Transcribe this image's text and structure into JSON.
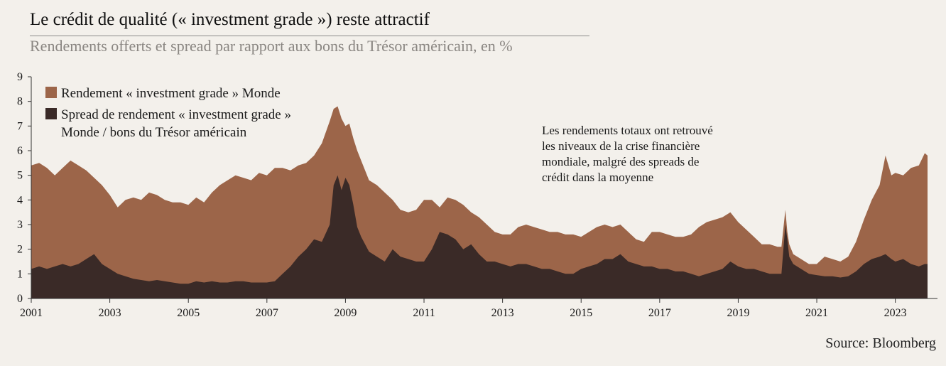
{
  "header": {
    "title": "Le crédit de qualité (« investment grade ») reste attractif",
    "subtitle": "Rendements offerts et spread par rapport aux bons du Trésor américain, en %"
  },
  "footer": {
    "source": "Source: Bloomberg"
  },
  "colors": {
    "yield": "#9c6549",
    "spread": "#3a2a27",
    "background": "#f3f0eb"
  },
  "chart_data": {
    "type": "area",
    "xlim": [
      2001.0,
      2023.82
    ],
    "ylim": [
      0,
      9
    ],
    "x_ticks": [
      2001,
      2003,
      2005,
      2007,
      2009,
      2011,
      2013,
      2015,
      2017,
      2019,
      2021,
      2023
    ],
    "x_tick_labels": [
      "2001",
      "2003",
      "2005",
      "2007",
      "2009",
      "2011",
      "2013",
      "2015",
      "2017",
      "2019",
      "2021",
      "2023"
    ],
    "y_ticks": [
      0,
      1,
      2,
      3,
      4,
      5,
      6,
      7,
      8,
      9
    ],
    "y_tick_labels": [
      "0",
      "1",
      "2",
      "3",
      "4",
      "5",
      "6",
      "7",
      "8",
      "9"
    ],
    "grid": false,
    "legend_position": "top-left",
    "series": [
      {
        "name": "Rendement « investment grade » Monde",
        "legend_lines": [
          "Rendement « investment grade » Monde"
        ],
        "x": [
          2001.0,
          2001.2,
          2001.4,
          2001.6,
          2001.8,
          2002.0,
          2002.2,
          2002.4,
          2002.6,
          2002.8,
          2003.0,
          2003.2,
          2003.4,
          2003.6,
          2003.8,
          2004.0,
          2004.2,
          2004.4,
          2004.6,
          2004.8,
          2005.0,
          2005.2,
          2005.4,
          2005.6,
          2005.8,
          2006.0,
          2006.2,
          2006.4,
          2006.6,
          2006.8,
          2007.0,
          2007.2,
          2007.4,
          2007.6,
          2007.8,
          2008.0,
          2008.2,
          2008.4,
          2008.6,
          2008.7,
          2008.8,
          2008.9,
          2009.0,
          2009.1,
          2009.2,
          2009.3,
          2009.4,
          2009.6,
          2009.8,
          2010.0,
          2010.2,
          2010.4,
          2010.6,
          2010.8,
          2011.0,
          2011.2,
          2011.4,
          2011.6,
          2011.8,
          2012.0,
          2012.2,
          2012.4,
          2012.6,
          2012.8,
          2013.0,
          2013.2,
          2013.4,
          2013.6,
          2013.8,
          2014.0,
          2014.2,
          2014.4,
          2014.6,
          2014.8,
          2015.0,
          2015.2,
          2015.4,
          2015.6,
          2015.8,
          2016.0,
          2016.2,
          2016.4,
          2016.6,
          2016.8,
          2017.0,
          2017.2,
          2017.4,
          2017.6,
          2017.8,
          2018.0,
          2018.2,
          2018.4,
          2018.6,
          2018.8,
          2019.0,
          2019.2,
          2019.4,
          2019.6,
          2019.8,
          2020.0,
          2020.1,
          2020.2,
          2020.25,
          2020.3,
          2020.4,
          2020.6,
          2020.8,
          2021.0,
          2021.2,
          2021.4,
          2021.6,
          2021.8,
          2022.0,
          2022.2,
          2022.4,
          2022.6,
          2022.75,
          2022.9,
          2023.0,
          2023.2,
          2023.4,
          2023.6,
          2023.75,
          2023.82
        ],
        "values": [
          5.4,
          5.5,
          5.3,
          5.0,
          5.3,
          5.6,
          5.4,
          5.2,
          4.9,
          4.6,
          4.2,
          3.7,
          4.0,
          4.1,
          4.0,
          4.3,
          4.2,
          4.0,
          3.9,
          3.9,
          3.8,
          4.1,
          3.9,
          4.3,
          4.6,
          4.8,
          5.0,
          4.9,
          4.8,
          5.1,
          5.0,
          5.3,
          5.3,
          5.2,
          5.4,
          5.5,
          5.8,
          6.3,
          7.2,
          7.7,
          7.8,
          7.3,
          7.0,
          7.1,
          6.5,
          6.0,
          5.6,
          4.8,
          4.6,
          4.3,
          4.0,
          3.6,
          3.5,
          3.6,
          4.0,
          4.0,
          3.7,
          4.1,
          4.0,
          3.8,
          3.5,
          3.3,
          3.0,
          2.7,
          2.6,
          2.6,
          2.9,
          3.0,
          2.9,
          2.8,
          2.7,
          2.7,
          2.6,
          2.6,
          2.5,
          2.7,
          2.9,
          3.0,
          2.9,
          3.0,
          2.7,
          2.4,
          2.3,
          2.7,
          2.7,
          2.6,
          2.5,
          2.5,
          2.6,
          2.9,
          3.1,
          3.2,
          3.3,
          3.5,
          3.1,
          2.8,
          2.5,
          2.2,
          2.2,
          2.1,
          2.1,
          3.6,
          2.7,
          2.2,
          1.8,
          1.6,
          1.4,
          1.4,
          1.7,
          1.6,
          1.5,
          1.7,
          2.3,
          3.2,
          4.0,
          4.6,
          5.8,
          5.0,
          5.1,
          5.0,
          5.3,
          5.4,
          5.9,
          5.8
        ]
      },
      {
        "name": "Spread de rendement « investment grade » Monde / bons du Trésor américain",
        "legend_lines": [
          "Spread de rendement « investment grade »",
          "Monde / bons du Trésor américain"
        ],
        "x": [
          2001.0,
          2001.2,
          2001.4,
          2001.6,
          2001.8,
          2002.0,
          2002.2,
          2002.4,
          2002.6,
          2002.8,
          2003.0,
          2003.2,
          2003.4,
          2003.6,
          2003.8,
          2004.0,
          2004.2,
          2004.4,
          2004.6,
          2004.8,
          2005.0,
          2005.2,
          2005.4,
          2005.6,
          2005.8,
          2006.0,
          2006.2,
          2006.4,
          2006.6,
          2006.8,
          2007.0,
          2007.2,
          2007.4,
          2007.6,
          2007.8,
          2008.0,
          2008.2,
          2008.4,
          2008.6,
          2008.7,
          2008.8,
          2008.9,
          2009.0,
          2009.1,
          2009.2,
          2009.3,
          2009.4,
          2009.6,
          2009.8,
          2010.0,
          2010.2,
          2010.4,
          2010.6,
          2010.8,
          2011.0,
          2011.2,
          2011.4,
          2011.6,
          2011.8,
          2012.0,
          2012.2,
          2012.4,
          2012.6,
          2012.8,
          2013.0,
          2013.2,
          2013.4,
          2013.6,
          2013.8,
          2014.0,
          2014.2,
          2014.4,
          2014.6,
          2014.8,
          2015.0,
          2015.2,
          2015.4,
          2015.6,
          2015.8,
          2016.0,
          2016.2,
          2016.4,
          2016.6,
          2016.8,
          2017.0,
          2017.2,
          2017.4,
          2017.6,
          2017.8,
          2018.0,
          2018.2,
          2018.4,
          2018.6,
          2018.8,
          2019.0,
          2019.2,
          2019.4,
          2019.6,
          2019.8,
          2020.0,
          2020.1,
          2020.2,
          2020.25,
          2020.3,
          2020.4,
          2020.6,
          2020.8,
          2021.0,
          2021.2,
          2021.4,
          2021.6,
          2021.8,
          2022.0,
          2022.2,
          2022.4,
          2022.6,
          2022.75,
          2022.9,
          2023.0,
          2023.2,
          2023.4,
          2023.6,
          2023.75,
          2023.82
        ],
        "values": [
          1.2,
          1.3,
          1.2,
          1.3,
          1.4,
          1.3,
          1.4,
          1.6,
          1.8,
          1.4,
          1.2,
          1.0,
          0.9,
          0.8,
          0.75,
          0.7,
          0.75,
          0.7,
          0.65,
          0.6,
          0.6,
          0.7,
          0.65,
          0.7,
          0.65,
          0.65,
          0.7,
          0.7,
          0.65,
          0.65,
          0.65,
          0.7,
          1.0,
          1.3,
          1.7,
          2.0,
          2.4,
          2.3,
          3.0,
          4.6,
          5.0,
          4.4,
          4.9,
          4.6,
          3.8,
          2.9,
          2.5,
          1.9,
          1.7,
          1.5,
          2.0,
          1.7,
          1.6,
          1.5,
          1.5,
          2.0,
          2.7,
          2.6,
          2.4,
          2.0,
          2.2,
          1.8,
          1.5,
          1.5,
          1.4,
          1.3,
          1.4,
          1.4,
          1.3,
          1.2,
          1.2,
          1.1,
          1.0,
          1.0,
          1.2,
          1.3,
          1.4,
          1.6,
          1.6,
          1.8,
          1.5,
          1.4,
          1.3,
          1.3,
          1.2,
          1.2,
          1.1,
          1.1,
          1.0,
          0.9,
          1.0,
          1.1,
          1.2,
          1.5,
          1.3,
          1.2,
          1.2,
          1.1,
          1.0,
          1.0,
          1.0,
          3.0,
          2.4,
          1.7,
          1.4,
          1.2,
          1.0,
          0.95,
          0.9,
          0.9,
          0.85,
          0.9,
          1.1,
          1.4,
          1.6,
          1.7,
          1.8,
          1.6,
          1.5,
          1.6,
          1.4,
          1.3,
          1.4,
          1.4
        ]
      }
    ],
    "annotation": {
      "lines": [
        "Les rendements totaux ont retrouvé",
        "les niveaux de la crise financière",
        "mondiale, malgré des spreads de",
        "crédit dans la moyenne"
      ]
    }
  }
}
